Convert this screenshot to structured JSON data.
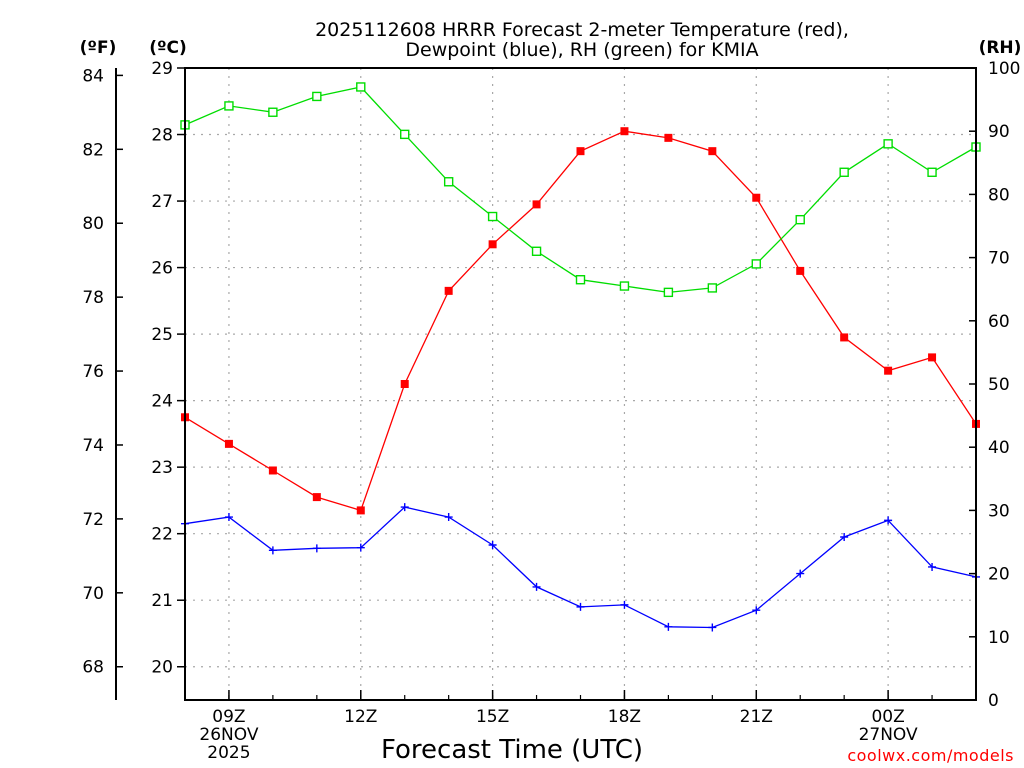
{
  "chart_data": {
    "type": "line",
    "title_lines": [
      "2025112608 HRRR Forecast 2-meter Temperature (red),",
      "Dewpoint (blue), RH (green) for KMIA"
    ],
    "xlabel": "Forecast Time (UTC)",
    "credit": "coolwx.com/models",
    "unit_labels": {
      "fahrenheit": "(ºF)",
      "celsius": "(ºC)",
      "rh": "(RH)"
    },
    "x_hours": [
      8,
      9,
      10,
      11,
      12,
      13,
      14,
      15,
      16,
      17,
      18,
      19,
      20,
      21,
      22,
      23,
      24,
      25,
      26
    ],
    "x_ticks": [
      {
        "hour": 9,
        "lines": [
          "09Z",
          "26NOV",
          "2025"
        ]
      },
      {
        "hour": 12,
        "lines": [
          "12Z"
        ]
      },
      {
        "hour": 15,
        "lines": [
          "15Z"
        ]
      },
      {
        "hour": 18,
        "lines": [
          "18Z"
        ]
      },
      {
        "hour": 21,
        "lines": [
          "21Z"
        ]
      },
      {
        "hour": 24,
        "lines": [
          "00Z",
          "27NOV"
        ]
      }
    ],
    "xlim": [
      8,
      26
    ],
    "celsius_axis": {
      "ylim": [
        19.5,
        29.0
      ],
      "ticks": [
        20,
        21,
        22,
        23,
        24,
        25,
        26,
        27,
        28,
        29
      ]
    },
    "fahrenheit_axis": {
      "ticks": [
        68,
        70,
        72,
        74,
        76,
        78,
        80,
        82,
        84
      ]
    },
    "rh_axis": {
      "ylim": [
        0,
        100
      ],
      "ticks": [
        0,
        10,
        20,
        30,
        40,
        50,
        60,
        70,
        80,
        90,
        100
      ]
    },
    "series": [
      {
        "name": "Temperature",
        "color": "#ff0000",
        "marker": "filled-square",
        "axis": "celsius",
        "values": [
          23.75,
          23.35,
          22.95,
          22.55,
          22.35,
          24.25,
          25.65,
          26.35,
          26.95,
          27.75,
          28.05,
          27.95,
          27.75,
          27.05,
          25.95,
          24.95,
          24.45,
          24.65,
          23.65
        ]
      },
      {
        "name": "Dewpoint",
        "color": "#0000ff",
        "marker": "plus",
        "axis": "celsius",
        "values": [
          22.15,
          22.25,
          21.75,
          21.78,
          21.79,
          22.4,
          22.25,
          21.83,
          21.2,
          20.9,
          20.93,
          20.6,
          20.59,
          20.85,
          21.4,
          21.95,
          22.2,
          21.5,
          21.35
        ]
      },
      {
        "name": "RH",
        "color": "#00dd00",
        "marker": "open-square",
        "axis": "rh",
        "values": [
          91,
          94,
          93,
          95.5,
          97,
          89.5,
          82,
          76.5,
          71,
          66.5,
          65.5,
          64.5,
          65.2,
          69,
          76,
          83.5,
          88,
          83.5,
          87.5
        ]
      }
    ],
    "grid": true
  }
}
